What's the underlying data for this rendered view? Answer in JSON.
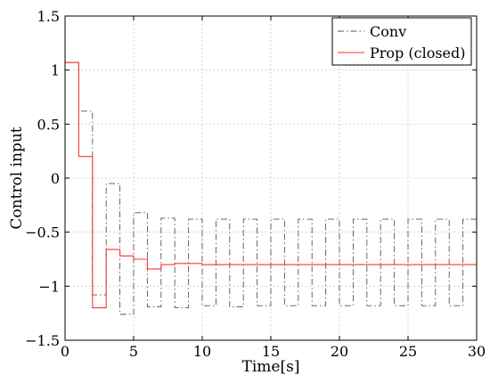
{
  "chart_data": {
    "type": "line",
    "xlabel": "Time[s]",
    "ylabel": "Control input",
    "xlim": [
      0,
      30
    ],
    "ylim": [
      -1.5,
      1.5
    ],
    "xticks": [
      "0",
      "5",
      "10",
      "15",
      "20",
      "25",
      "30"
    ],
    "yticks": [
      "1.5",
      "1",
      "0.5",
      "0",
      "−0.5",
      "−1",
      "−1.5"
    ],
    "grid": true,
    "legend_position": "top-right",
    "series": [
      {
        "name": "Conv",
        "style": "dash-dot",
        "color": "#555555",
        "step": true,
        "x": [
          0,
          1,
          2,
          3,
          4,
          5,
          6,
          7,
          8,
          9,
          10,
          11,
          12,
          13,
          14,
          15,
          16,
          17,
          18,
          19,
          20,
          21,
          22,
          23,
          24,
          25,
          26,
          27,
          28,
          29,
          30
        ],
        "values": [
          1.07,
          0.62,
          -1.08,
          -0.05,
          -1.26,
          -0.32,
          -1.19,
          -0.37,
          -1.2,
          -0.38,
          -1.18,
          -0.38,
          -1.19,
          -0.38,
          -1.18,
          -0.38,
          -1.18,
          -0.38,
          -1.18,
          -0.38,
          -1.18,
          -0.38,
          -1.18,
          -0.38,
          -1.18,
          -0.38,
          -1.18,
          -0.38,
          -1.18,
          -0.38,
          -1.18
        ]
      },
      {
        "name": "Prop (closed)",
        "style": "solid",
        "color": "#ff3333",
        "step": true,
        "x": [
          0,
          1,
          2,
          3,
          4,
          5,
          6,
          7,
          8,
          9,
          10,
          11,
          12,
          13,
          14,
          15,
          16,
          17,
          18,
          19,
          20,
          21,
          22,
          23,
          24,
          25,
          26,
          27,
          28,
          29,
          30
        ],
        "values": [
          1.07,
          0.2,
          -1.2,
          -0.66,
          -0.72,
          -0.75,
          -0.84,
          -0.8,
          -0.79,
          -0.79,
          -0.8,
          -0.8,
          -0.8,
          -0.8,
          -0.8,
          -0.8,
          -0.8,
          -0.8,
          -0.8,
          -0.8,
          -0.8,
          -0.8,
          -0.8,
          -0.8,
          -0.8,
          -0.8,
          -0.8,
          -0.8,
          -0.8,
          -0.8,
          -0.8
        ]
      }
    ]
  }
}
